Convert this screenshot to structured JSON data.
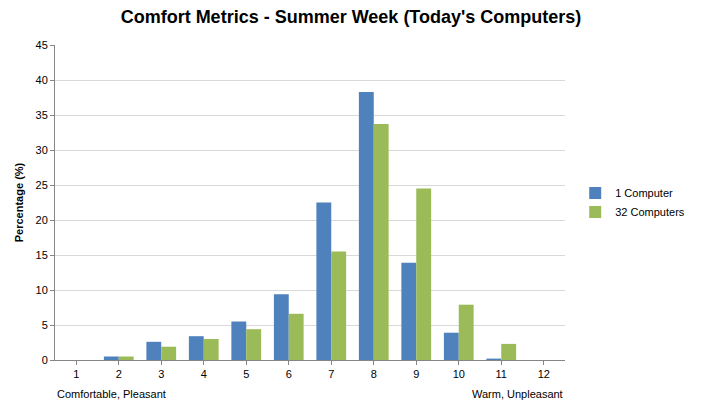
{
  "chart_data": {
    "type": "bar",
    "title": "Comfort Metrics - Summer Week (Today's Computers)",
    "y_label": "Percentage (%)",
    "categories": [
      "1",
      "2",
      "3",
      "4",
      "5",
      "6",
      "7",
      "8",
      "9",
      "10",
      "11",
      "12"
    ],
    "series": [
      {
        "name": "1 Computer",
        "color": "#4f81bd",
        "values": [
          0,
          0.5,
          2.6,
          3.4,
          5.5,
          9.4,
          22.5,
          38.3,
          13.9,
          3.9,
          0.2,
          0
        ]
      },
      {
        "name": "32 Computers",
        "color": "#9bbb59",
        "values": [
          0,
          0.5,
          1.9,
          3.0,
          4.4,
          6.6,
          15.5,
          33.7,
          24.5,
          7.9,
          2.3,
          0
        ]
      }
    ],
    "annotations": [
      {
        "text": "Comfortable, Pleasant"
      },
      {
        "text": "Warm, Unpleasant"
      }
    ],
    "ylim": [
      0,
      45
    ],
    "yticks": [
      0,
      5,
      10,
      15,
      20,
      25,
      30,
      35,
      40,
      45
    ],
    "grid": true,
    "legend": "right"
  }
}
